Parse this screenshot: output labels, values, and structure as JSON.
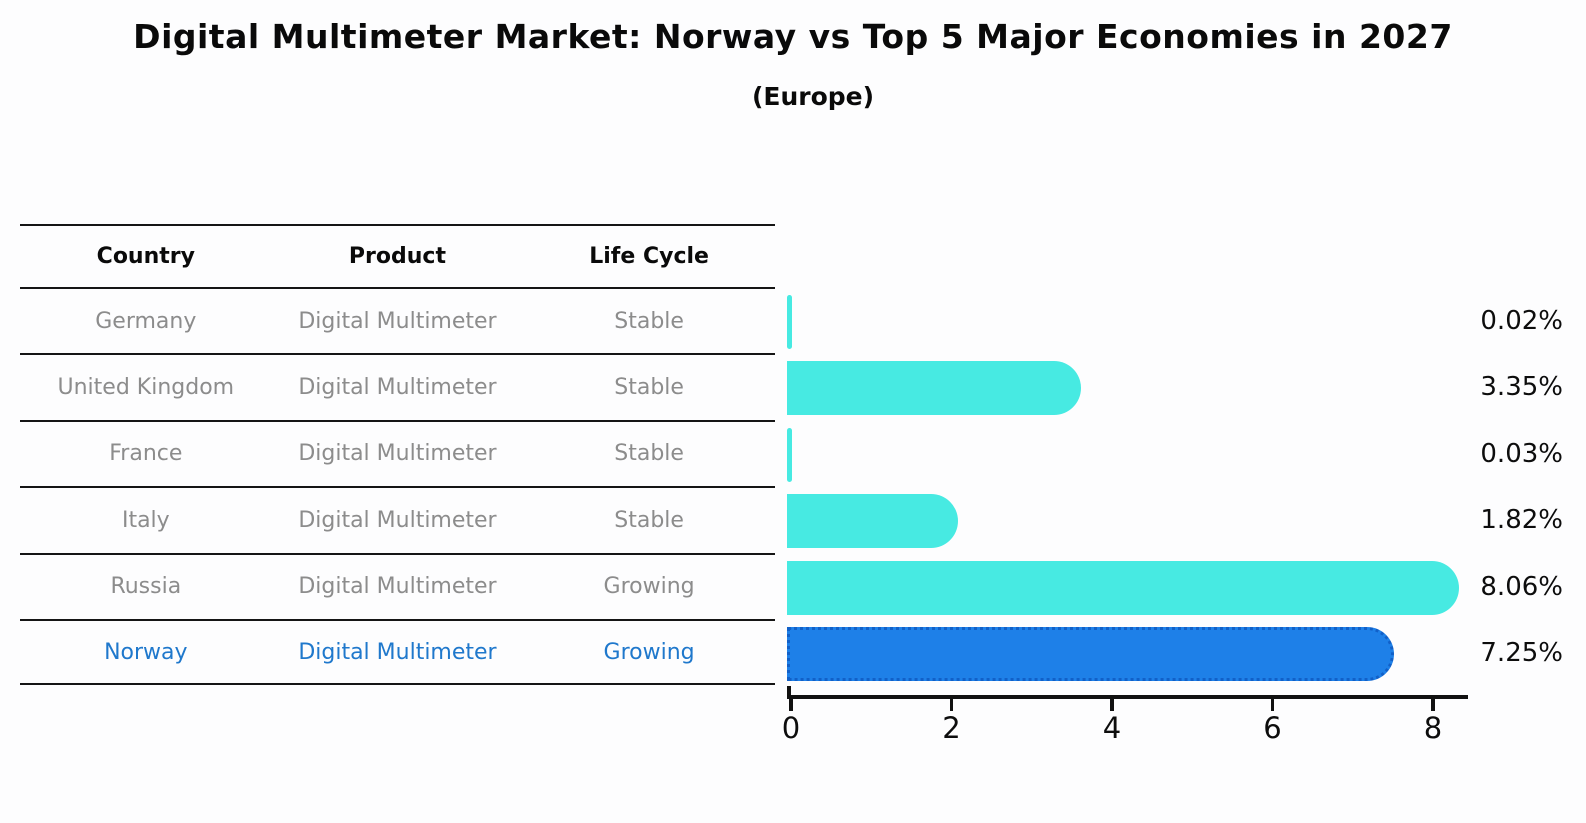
{
  "title": "Digital Multimeter Market: Norway vs Top 5 Major Economies in 2027",
  "subtitle": "(Europe)",
  "table": {
    "headers": [
      "Country",
      "Product",
      "Life Cycle"
    ],
    "rows": [
      {
        "country": "Germany",
        "product": "Digital Multimeter",
        "life_cycle": "Stable",
        "highlight": false
      },
      {
        "country": "United Kingdom",
        "product": "Digital Multimeter",
        "life_cycle": "Stable",
        "highlight": false
      },
      {
        "country": "France",
        "product": "Digital Multimeter",
        "life_cycle": "Stable",
        "highlight": false
      },
      {
        "country": "Italy",
        "product": "Digital Multimeter",
        "life_cycle": "Stable",
        "highlight": false
      },
      {
        "country": "Russia",
        "product": "Digital Multimeter",
        "life_cycle": "Growing",
        "highlight": false
      },
      {
        "country": "Norway",
        "product": "Digital Multimeter",
        "life_cycle": "Growing",
        "highlight": true
      }
    ]
  },
  "chart_data": {
    "type": "bar",
    "orientation": "horizontal",
    "title": "Digital Multimeter Market: Norway vs Top 5 Major Economies in 2027 (Europe)",
    "categories": [
      "Germany",
      "United Kingdom",
      "France",
      "Italy",
      "Russia",
      "Norway"
    ],
    "values": [
      0.02,
      3.35,
      0.03,
      1.82,
      8.06,
      7.25
    ],
    "value_labels": [
      "0.02%",
      "3.35%",
      "0.03%",
      "1.82%",
      "8.06%",
      "7.25%"
    ],
    "unit": "%",
    "xlim": [
      0,
      8.5
    ],
    "xticks": [
      "0",
      "2",
      "4",
      "6",
      "8"
    ],
    "grid": false,
    "legend": false,
    "highlight_index": 5,
    "bar_color": "#47EAE2",
    "highlight_color": "#1E80E8",
    "highlight_border_color": "#1160c8"
  },
  "colors": {
    "background": "#fdfdfe",
    "table_text": "#8c8c8c",
    "table_header_text": "#0a0a0a",
    "highlight_row_text": "#1f78cc",
    "axis": "#111111"
  }
}
